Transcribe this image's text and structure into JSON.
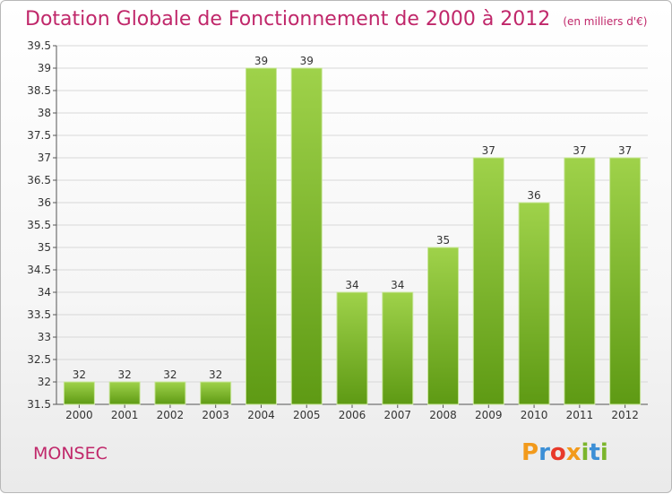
{
  "header": {
    "title": "Dotation Globale de Fonctionnement de 2000 à 2012",
    "subtitle": "(en milliers d'€)"
  },
  "footer": {
    "place": "MONSEC",
    "logo_text": "Proxiti"
  },
  "colors": {
    "title": "#c0276a",
    "bar_light": "#9fd24a",
    "bar_dark": "#5e9a14",
    "grid": "#d8d8d8",
    "axis_text": "#333333",
    "logo_letters": [
      "#f29a1c",
      "#3c8fd6",
      "#e8392a",
      "#f29a1c",
      "#7bb52c",
      "#3c8fd6",
      "#7bb52c"
    ]
  },
  "chart_data": {
    "type": "bar",
    "title": "Dotation Globale de Fonctionnement de 2000 à 2012",
    "subtitle": "(en milliers d'€)",
    "xlabel": "",
    "ylabel": "",
    "categories": [
      "2000",
      "2001",
      "2002",
      "2003",
      "2004",
      "2005",
      "2006",
      "2007",
      "2008",
      "2009",
      "2010",
      "2011",
      "2012"
    ],
    "values": [
      32,
      32,
      32,
      32,
      39,
      39,
      34,
      34,
      35,
      37,
      36,
      37,
      37
    ],
    "ylim": [
      31.5,
      39.5
    ],
    "yticks": [
      31.5,
      32,
      32.5,
      33,
      33.5,
      34,
      34.5,
      35,
      35.5,
      36,
      36.5,
      37,
      37.5,
      38,
      38.5,
      39,
      39.5
    ],
    "ytick_labels": [
      "31.5",
      "32",
      "32.5",
      "33",
      "33.5",
      "34",
      "34.5",
      "35",
      "35.5",
      "36",
      "36.5",
      "37",
      "37.5",
      "38",
      "38.5",
      "39",
      "39.5"
    ],
    "grid": true,
    "legend": "none"
  }
}
